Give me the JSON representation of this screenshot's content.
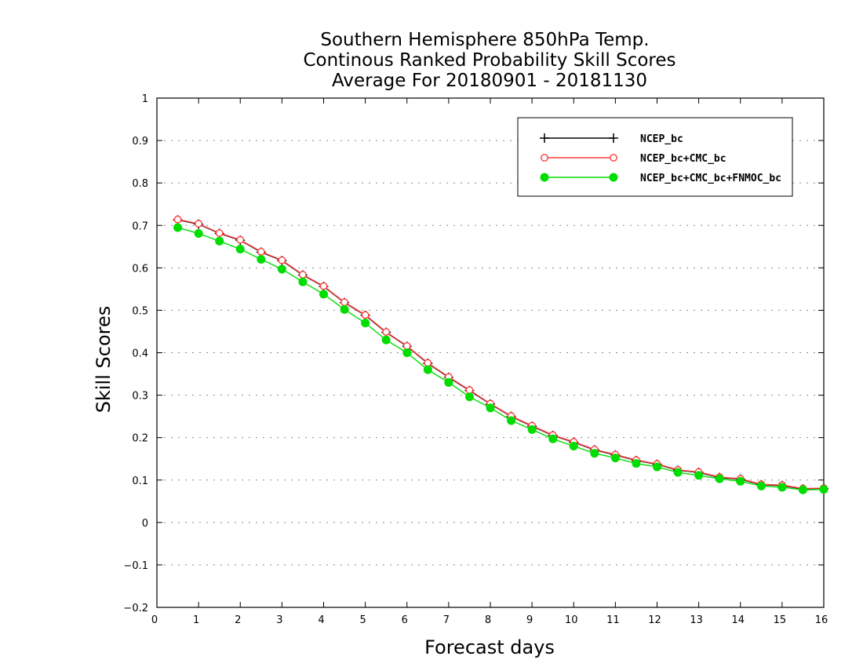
{
  "chart_data": {
    "type": "line",
    "title": [
      "Southern Hemisphere 850hPa Temp.",
      "Continous Ranked Probability Skill Scores",
      "Average For 20180901 - 20181130"
    ],
    "xlabel": "Forecast days",
    "ylabel": "Skill Scores",
    "xlim": [
      0,
      16
    ],
    "ylim": [
      -0.2,
      1
    ],
    "x_ticks": [
      "0",
      "1",
      "2",
      "3",
      "4",
      "5",
      "6",
      "7",
      "8",
      "9",
      "10",
      "11",
      "12",
      "13",
      "14",
      "15",
      "16"
    ],
    "y_ticks": [
      "−0.2",
      "−0.1",
      "0",
      "0.1",
      "0.2",
      "0.3",
      "0.4",
      "0.5",
      "0.6",
      "0.7",
      "0.8",
      "0.9",
      "1"
    ],
    "grid": "horizontal dotted",
    "legend_position": "top-right",
    "x": [
      0.5,
      1,
      1.5,
      2,
      2.5,
      3,
      3.5,
      4,
      4.5,
      5,
      5.5,
      6,
      6.5,
      7,
      7.5,
      8,
      8.5,
      9,
      9.5,
      10,
      10.5,
      11,
      11.5,
      12,
      12.5,
      13,
      13.5,
      14,
      14.5,
      15,
      15.5,
      16
    ],
    "series": [
      {
        "name": "NCEP_bc",
        "color": "#000000",
        "marker": "plus",
        "values": [
          0.713,
          0.703,
          0.681,
          0.665,
          0.637,
          0.617,
          0.583,
          0.556,
          0.518,
          0.488,
          0.448,
          0.415,
          0.375,
          0.342,
          0.311,
          0.279,
          0.25,
          0.227,
          0.205,
          0.189,
          0.171,
          0.159,
          0.146,
          0.137,
          0.123,
          0.118,
          0.106,
          0.102,
          0.089,
          0.087,
          0.079,
          0.08
        ]
      },
      {
        "name": "NCEP_bc+CMC_bc",
        "color": "#ff3b3b",
        "marker": "open-circle",
        "values": [
          0.714,
          0.704,
          0.682,
          0.666,
          0.638,
          0.618,
          0.584,
          0.557,
          0.519,
          0.489,
          0.449,
          0.416,
          0.376,
          0.343,
          0.312,
          0.28,
          0.251,
          0.228,
          0.206,
          0.19,
          0.172,
          0.16,
          0.147,
          0.138,
          0.124,
          0.119,
          0.107,
          0.103,
          0.09,
          0.088,
          0.08,
          0.081
        ]
      },
      {
        "name": "NCEP_bc+CMC_bc+FNMOC_bc",
        "color": "#00dd00",
        "marker": "filled-circle",
        "values": [
          0.695,
          0.681,
          0.663,
          0.644,
          0.62,
          0.597,
          0.567,
          0.538,
          0.502,
          0.47,
          0.43,
          0.4,
          0.36,
          0.33,
          0.296,
          0.27,
          0.24,
          0.219,
          0.197,
          0.18,
          0.163,
          0.152,
          0.139,
          0.131,
          0.118,
          0.111,
          0.103,
          0.097,
          0.086,
          0.083,
          0.077,
          0.078
        ]
      }
    ]
  }
}
